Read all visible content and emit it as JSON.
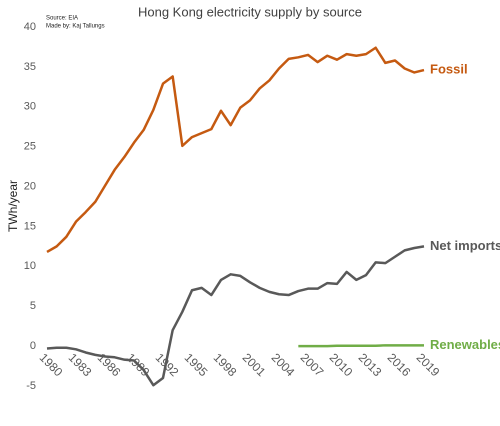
{
  "chart_data": {
    "type": "line",
    "title": "Hong Kong electricity supply by source",
    "source": "Source: EIA",
    "credit": "Made by: Kaj Tallungs",
    "ylabel": "TWh/year",
    "x": [
      1980,
      1981,
      1982,
      1983,
      1984,
      1985,
      1986,
      1987,
      1988,
      1989,
      1990,
      1991,
      1992,
      1993,
      1994,
      1995,
      1996,
      1997,
      1998,
      1999,
      2000,
      2001,
      2002,
      2003,
      2004,
      2005,
      2006,
      2007,
      2008,
      2009,
      2010,
      2011,
      2012,
      2013,
      2014,
      2015,
      2016,
      2017,
      2018,
      2019
    ],
    "xlim": [
      1980,
      2019
    ],
    "xticks": [
      1980,
      1983,
      1986,
      1989,
      1992,
      1995,
      1998,
      2001,
      2004,
      2007,
      2010,
      2013,
      2016,
      2019
    ],
    "ylim": [
      -5,
      40
    ],
    "yticks": [
      -5,
      0,
      5,
      10,
      15,
      20,
      25,
      30,
      35,
      40
    ],
    "series": [
      {
        "name": "Fossil",
        "color": "#c55a11",
        "values": [
          11.8,
          12.5,
          13.7,
          15.6,
          16.8,
          18.1,
          20.1,
          22.1,
          23.7,
          25.5,
          27.1,
          29.6,
          32.9,
          33.8,
          25.1,
          26.2,
          26.7,
          27.2,
          29.5,
          27.7,
          29.9,
          30.8,
          32.3,
          33.3,
          34.8,
          36.0,
          36.2,
          36.5,
          35.6,
          36.4,
          35.9,
          36.6,
          36.4,
          36.6,
          37.4,
          35.5,
          35.8,
          34.8,
          34.3,
          34.6
        ]
      },
      {
        "name": "Net imports",
        "color": "#595959",
        "values": [
          -0.3,
          -0.2,
          -0.2,
          -0.4,
          -0.8,
          -1.1,
          -1.3,
          -1.4,
          -1.7,
          -1.8,
          -3.0,
          -4.9,
          -4.0,
          2.0,
          4.3,
          7.0,
          7.3,
          6.4,
          8.3,
          9.0,
          8.8,
          8.0,
          7.3,
          6.8,
          6.5,
          6.4,
          6.9,
          7.2,
          7.2,
          7.9,
          7.8,
          9.3,
          8.3,
          8.9,
          10.5,
          10.4,
          11.2,
          12.0,
          12.3,
          12.5
        ]
      },
      {
        "name": "Renewables",
        "color": "#70ad47",
        "values": [
          null,
          null,
          null,
          null,
          null,
          null,
          null,
          null,
          null,
          null,
          null,
          null,
          null,
          null,
          null,
          null,
          null,
          null,
          null,
          null,
          null,
          null,
          null,
          null,
          null,
          null,
          0.0,
          0.0,
          0.0,
          0.0,
          0.05,
          0.05,
          0.05,
          0.05,
          0.05,
          0.1,
          0.1,
          0.1,
          0.1,
          0.1
        ]
      }
    ]
  }
}
